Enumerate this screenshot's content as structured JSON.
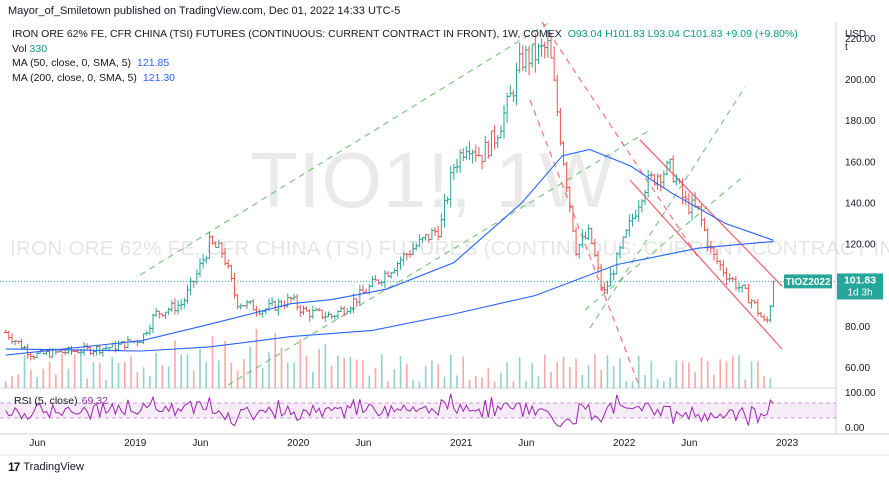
{
  "header": {
    "publisher_line": "Mayor_of_Smiletown published on TradingView.com, Dec 01, 2022 14:33 UTC-5"
  },
  "legend": {
    "title": "IRON ORE 62% FE, CFR CHINA (TSI) FUTURES (CONTINUOUS: CURRENT CONTRACT IN FRONT), 1W, COMEX",
    "ohlc": "O93.04 H101.83 L93.04 C101.83 +9.09 (+9.80%)",
    "vol_label": "Vol",
    "vol_value": "330",
    "ma50_label": "MA (50, close, 0, SMA, 5)",
    "ma50_value": "121.85",
    "ma200_label": "MA (200, close, 0, SMA, 5)",
    "ma200_value": "121.30"
  },
  "rsi": {
    "label": "RSI (5, close)",
    "value": "69.32"
  },
  "watermark": {
    "symbol": "TIO1!, 1W",
    "description": "IRON ORE 62% FE, CFR CHINA (TSI) FUTURES (CONTINUOUS: CURRENT CONTRACT IN FRONT)"
  },
  "price_tag": {
    "symbol": "TIOZ2022",
    "price": "101.83",
    "countdown": "1d 3h",
    "color": "#26a69a"
  },
  "footer": {
    "brand": "TradingView"
  },
  "colors": {
    "up": "#26a69a",
    "down": "#ef5350",
    "ma": "#2962ff",
    "rsi": "#9c27b0",
    "up_trend": "#4caf50",
    "down_trend": "#f23645"
  },
  "chart_data": {
    "type": "line",
    "currency_label": "USD",
    "y_ticks": [
      60,
      80,
      100,
      120,
      140,
      160,
      180,
      200,
      220
    ],
    "ylim": [
      50,
      228
    ],
    "x_ticks": [
      "Jun",
      "2019",
      "Jun",
      "2020",
      "Jun",
      "2021",
      "Jun",
      "2022",
      "Jun",
      "2023"
    ],
    "rsi_ticks": [
      "100.00",
      "0.00"
    ],
    "last_price": 101.83,
    "weekly_close_path": [
      {
        "t": "2018-03",
        "close": 77
      },
      {
        "t": "2018-05",
        "close": 66
      },
      {
        "t": "2018-08",
        "close": 68
      },
      {
        "t": "2018-11",
        "close": 70
      },
      {
        "t": "2019-01",
        "close": 74
      },
      {
        "t": "2019-02",
        "close": 86
      },
      {
        "t": "2019-04",
        "close": 91
      },
      {
        "t": "2019-05",
        "close": 104
      },
      {
        "t": "2019-06",
        "close": 120
      },
      {
        "t": "2019-07",
        "close": 116
      },
      {
        "t": "2019-08",
        "close": 92
      },
      {
        "t": "2019-10",
        "close": 88
      },
      {
        "t": "2019-12",
        "close": 93
      },
      {
        "t": "2020-01",
        "close": 87
      },
      {
        "t": "2020-03",
        "close": 85
      },
      {
        "t": "2020-04",
        "close": 89
      },
      {
        "t": "2020-06",
        "close": 100
      },
      {
        "t": "2020-08",
        "close": 112
      },
      {
        "t": "2020-09",
        "close": 118
      },
      {
        "t": "2020-11",
        "close": 128
      },
      {
        "t": "2020-12",
        "close": 158
      },
      {
        "t": "2021-01",
        "close": 170
      },
      {
        "t": "2021-02",
        "close": 163
      },
      {
        "t": "2021-03",
        "close": 172
      },
      {
        "t": "2021-04",
        "close": 188
      },
      {
        "t": "2021-05",
        "close": 210
      },
      {
        "t": "2021-06",
        "close": 212
      },
      {
        "t": "2021-07",
        "close": 216
      },
      {
        "t": "2021-08",
        "close": 165
      },
      {
        "t": "2021-09",
        "close": 118
      },
      {
        "t": "2021-10",
        "close": 125
      },
      {
        "t": "2021-11",
        "close": 95
      },
      {
        "t": "2021-12",
        "close": 112
      },
      {
        "t": "2022-01",
        "close": 130
      },
      {
        "t": "2022-02",
        "close": 148
      },
      {
        "t": "2022-03",
        "close": 154
      },
      {
        "t": "2022-04",
        "close": 157
      },
      {
        "t": "2022-05",
        "close": 140
      },
      {
        "t": "2022-06",
        "close": 136
      },
      {
        "t": "2022-07",
        "close": 115
      },
      {
        "t": "2022-08",
        "close": 106
      },
      {
        "t": "2022-09",
        "close": 99
      },
      {
        "t": "2022-10",
        "close": 92
      },
      {
        "t": "2022-11",
        "close": 80
      },
      {
        "t": "2022-11-25",
        "close": 92
      },
      {
        "t": "2022-12-01",
        "close": 101.83
      }
    ],
    "ma50_path": [
      {
        "t": "2018-03",
        "value": 66
      },
      {
        "t": "2019-01",
        "value": 73
      },
      {
        "t": "2019-06",
        "value": 81
      },
      {
        "t": "2019-12",
        "value": 91
      },
      {
        "t": "2020-03",
        "value": 93
      },
      {
        "t": "2020-07",
        "value": 98
      },
      {
        "t": "2020-12",
        "value": 111
      },
      {
        "t": "2021-05",
        "value": 140
      },
      {
        "t": "2021-08",
        "value": 163
      },
      {
        "t": "2021-10",
        "value": 166
      },
      {
        "t": "2022-01",
        "value": 158
      },
      {
        "t": "2022-04",
        "value": 145
      },
      {
        "t": "2022-08",
        "value": 130
      },
      {
        "t": "2022-12-01",
        "value": 121.85
      }
    ],
    "ma200_path": [
      {
        "t": "2018-03",
        "value": 69
      },
      {
        "t": "2019-01",
        "value": 68
      },
      {
        "t": "2019-06",
        "value": 70
      },
      {
        "t": "2019-12",
        "value": 75
      },
      {
        "t": "2020-06",
        "value": 78
      },
      {
        "t": "2020-12",
        "value": 86
      },
      {
        "t": "2021-06",
        "value": 95
      },
      {
        "t": "2021-12",
        "value": 110
      },
      {
        "t": "2022-06",
        "value": 118
      },
      {
        "t": "2022-12-01",
        "value": 121.3
      }
    ]
  }
}
